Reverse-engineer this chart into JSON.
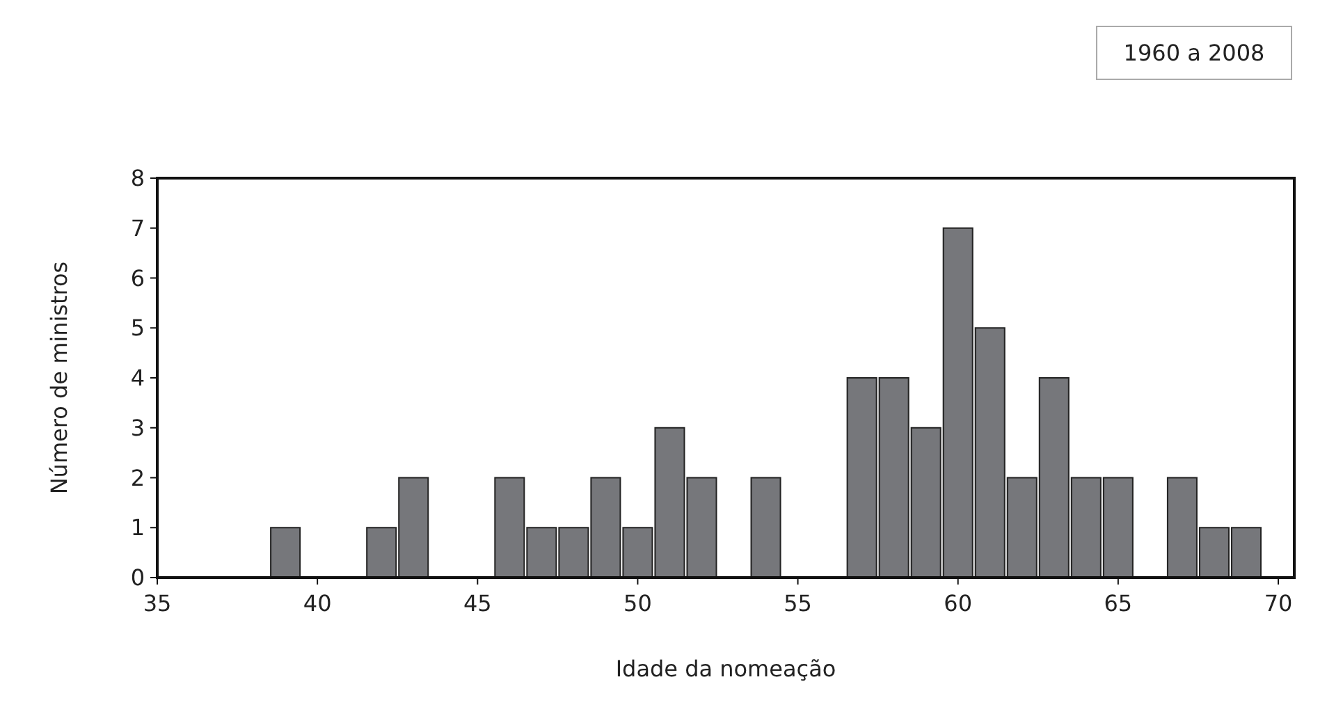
{
  "chart_data": {
    "type": "histogram",
    "xlabel": "Idade da nomeação",
    "ylabel": "Número de ministros",
    "annotations": [
      "1960 a 2008"
    ],
    "bins": [
      38.5,
      39.5,
      40.5,
      41.5,
      42.5,
      43.5,
      44.5,
      45.5,
      46.5,
      47.5,
      48.5,
      49.5,
      50.5,
      51.5,
      52.5,
      53.5,
      54.5,
      55.5,
      56.5,
      57.5,
      58.5,
      59.5,
      60.5,
      61.5,
      62.5,
      63.5,
      64.5,
      65.5,
      66.5,
      67.5,
      68.5,
      69.5
    ],
    "values": [
      1,
      0,
      0,
      1,
      2,
      0,
      0,
      2,
      1,
      1,
      2,
      1,
      3,
      2,
      0,
      2,
      0,
      0,
      4,
      4,
      3,
      7,
      5,
      2,
      4,
      2,
      2,
      0,
      2,
      1,
      1
    ],
    "color": "#76777b",
    "xlim": [
      35,
      70.5
    ],
    "xticks": [
      35,
      40,
      45,
      50,
      55,
      60,
      65,
      70
    ],
    "ylim": [
      0,
      8
    ],
    "yticks": [
      0,
      1,
      2,
      3,
      4,
      5,
      6,
      7,
      8
    ],
    "grid": false
  }
}
